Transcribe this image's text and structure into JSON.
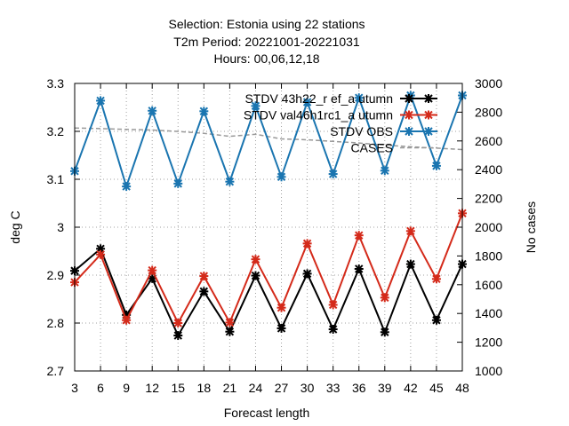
{
  "chart_data": {
    "type": "line",
    "title_lines": [
      "Selection: Estonia using     22 stations",
      "T2m   Period: 20221001-20221031",
      "Hours:  00,06,12,18"
    ],
    "xlabel": "Forecast length",
    "ylabel": "deg C",
    "y2label": "No cases",
    "x": [
      3,
      6,
      9,
      12,
      15,
      18,
      21,
      24,
      27,
      30,
      33,
      36,
      39,
      42,
      45,
      48
    ],
    "xlim": [
      3,
      48
    ],
    "ylim": [
      2.7,
      3.3
    ],
    "y2lim": [
      1000,
      3000
    ],
    "yticks": [
      "2.7",
      "2.8",
      "2.9",
      "3",
      "3.1",
      "3.2",
      "3.3"
    ],
    "y2ticks": [
      "1000",
      "1200",
      "1400",
      "1600",
      "1800",
      "2000",
      "2200",
      "2400",
      "2600",
      "2800",
      "3000"
    ],
    "grid": true,
    "legend_position": "top-right",
    "series": [
      {
        "name": "STDV 43h22_r ef_a utumn",
        "color": "#000000",
        "axis": "y",
        "style": "solid-marker",
        "values": [
          2.909,
          2.955,
          2.817,
          2.893,
          2.774,
          2.866,
          2.782,
          2.899,
          2.789,
          2.903,
          2.787,
          2.913,
          2.781,
          2.923,
          2.806,
          2.923
        ]
      },
      {
        "name": "STDV val46h1rc1_a utumn",
        "color": "#d42a1a",
        "axis": "y",
        "style": "solid-marker",
        "values": [
          2.885,
          2.943,
          2.806,
          2.91,
          2.8,
          2.898,
          2.801,
          2.933,
          2.832,
          2.966,
          2.838,
          2.983,
          2.853,
          2.992,
          2.892,
          3.029
        ]
      },
      {
        "name": "STDV OBS",
        "color": "#1a75b0",
        "axis": "y",
        "style": "solid-marker",
        "values": [
          3.117,
          3.264,
          3.085,
          3.243,
          3.091,
          3.242,
          3.095,
          3.253,
          3.105,
          3.261,
          3.111,
          3.27,
          3.118,
          3.275,
          3.128,
          3.275
        ]
      },
      {
        "name": "CASES",
        "color": "#999999",
        "axis": "y2",
        "style": "dashed",
        "values": [
          2690,
          2686,
          2680,
          2676,
          2666,
          2653,
          2632,
          2646,
          2614,
          2608,
          2597,
          2586,
          2571,
          2559,
          2550,
          2540
        ]
      }
    ]
  }
}
